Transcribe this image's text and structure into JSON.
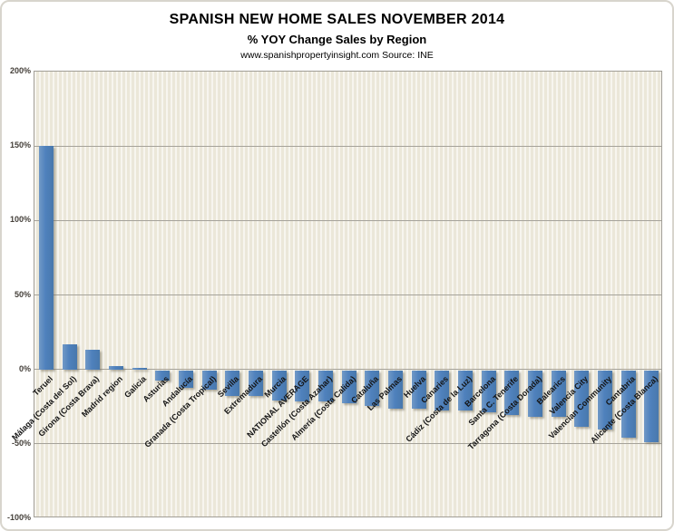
{
  "header": {
    "title": "SPANISH NEW HOME SALES NOVEMBER 2014",
    "subtitle": "% YOY Change Sales by Region",
    "source": "www.spanishpropertyinsight.com Source: INE"
  },
  "chart_data": {
    "type": "bar",
    "title": "SPANISH NEW HOME SALES NOVEMBER 2014",
    "subtitle": "% YOY Change Sales by Region",
    "source_note": "www.spanishpropertyinsight.com Source: INE",
    "categories": [
      "Teruel",
      "Málaga (Costa del Sol)",
      "Girona (Costa Brava)",
      "Madrid region",
      "Galicia",
      "Asturias",
      "Andalucía",
      "Granada (Costa Tropical)",
      "Sevilla",
      "Extremadura",
      "Murcia",
      "NATIONAL AVERAGE",
      "Castellón (Costa Azahar)",
      "Almería (Costa Calida)",
      "Cataluña",
      "Las Palmas",
      "Huelva",
      "Canaries",
      "Cádiz (Costa de la Luz)",
      "Barcelona",
      "Santa C. Tenerife",
      "Tarragona (Costa Dorada)",
      "Balearics",
      "Valencia City",
      "Valencian Community",
      "Cantabria",
      "Alicante (Costa Blanca)"
    ],
    "values": [
      150,
      17,
      13,
      2,
      1,
      -7,
      -12,
      -13,
      -17,
      -17,
      -20,
      -21,
      -21,
      -22,
      -24,
      -26,
      -26,
      -27,
      -27,
      -28,
      -30,
      -31,
      -31,
      -38,
      -40,
      -45,
      -48
    ],
    "unit": "%",
    "xlabel": "",
    "ylabel": "",
    "ylim": [
      -100,
      200
    ],
    "ytick_step": 50,
    "ytick_labels": [
      "200%",
      "150%",
      "100%",
      "50%",
      "0%",
      "-50%",
      "-100%"
    ],
    "ytick_values": [
      200,
      150,
      100,
      50,
      0,
      -50,
      -100
    ],
    "gridline_values": [
      150,
      100,
      50,
      0,
      -50
    ],
    "grid": true,
    "legend": false,
    "bar_color": "#4F81BD",
    "plot_background": "#EBE7D9",
    "gridline_color": "#A5A29A"
  }
}
